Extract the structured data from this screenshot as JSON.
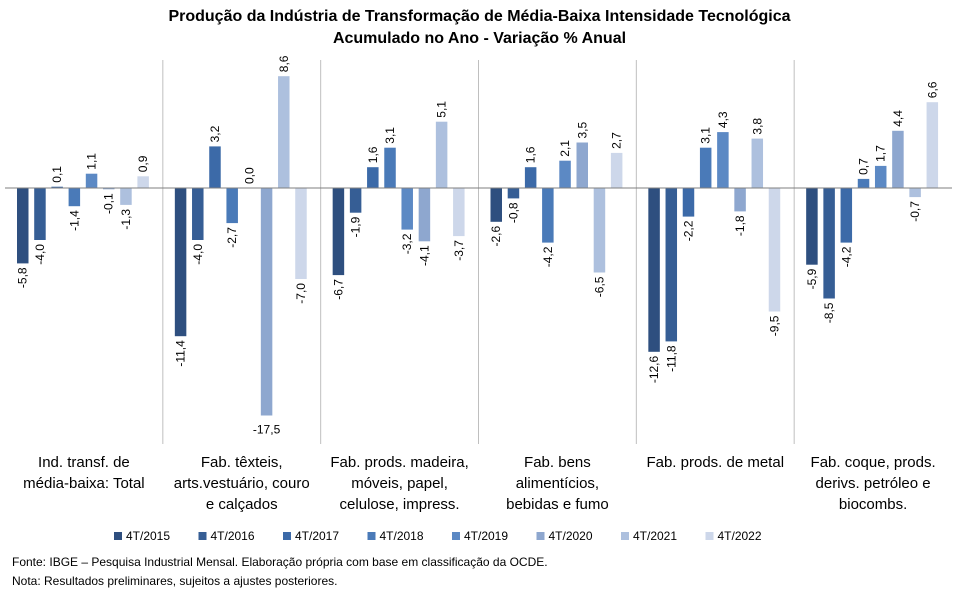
{
  "chart_data": {
    "type": "bar",
    "title": "Produção da Indústria de Transformação de Média-Baixa Intensidade Tecnológica",
    "subtitle": "Acumulado no Ano - Variação % Anual",
    "xlabel": "",
    "ylabel": "",
    "ylim": [
      -19,
      12
    ],
    "grid": false,
    "legend_position": "bottom",
    "categories": [
      [
        "Ind. transf. de",
        "média-baixa: Total"
      ],
      [
        "Fab. têxteis,",
        "arts.vestuário, couro",
        "e calçados"
      ],
      [
        "Fab. prods. madeira,",
        "móveis, papel,",
        "celulose, impress."
      ],
      [
        "Fab. bens",
        "alimentícios,",
        "bebidas e fumo"
      ],
      [
        "Fab. prods. de metal"
      ],
      [
        "Fab. coque, prods.",
        "derivs. petróleo e",
        "biocombs."
      ]
    ],
    "value_labels": [
      [
        "-5,8",
        "-4,0",
        "0,1",
        "-1,4",
        "1,1",
        "-0,1",
        "-1,3",
        "0,9"
      ],
      [
        "-11,4",
        "-4,0",
        "3,2",
        "-2,7",
        "0,0",
        "-17,5",
        "8,6",
        "-7,0"
      ],
      [
        "-6,7",
        "-1,9",
        "1,6",
        "3,1",
        "-3,2",
        "-4,1",
        "5,1",
        "-3,7"
      ],
      [
        "-2,6",
        "-0,8",
        "1,6",
        "-4,2",
        "2,1",
        "3,5",
        "-6,5",
        "2,7"
      ],
      [
        "-12,6",
        "-11,8",
        "-2,2",
        "3,1",
        "4,3",
        "-1,8",
        "3,8",
        "-9,5"
      ],
      [
        "-5,9",
        "-8,5",
        "-4,2",
        "0,7",
        "1,7",
        "4,4",
        "-0,7",
        "6,6"
      ]
    ],
    "series": [
      {
        "name": "4T/2015",
        "color": "#2e4f7f",
        "values": [
          -5.8,
          -11.4,
          -6.7,
          -2.6,
          -12.6,
          -5.9
        ]
      },
      {
        "name": "4T/2016",
        "color": "#365e95",
        "values": [
          -4.0,
          -4.0,
          -1.9,
          -0.8,
          -11.8,
          -8.5
        ]
      },
      {
        "name": "4T/2017",
        "color": "#3c6aa8",
        "values": [
          0.1,
          3.2,
          1.6,
          1.6,
          -2.2,
          -4.2
        ]
      },
      {
        "name": "4T/2018",
        "color": "#4a7ab8",
        "values": [
          -1.4,
          -2.7,
          3.1,
          -4.2,
          3.1,
          0.7
        ]
      },
      {
        "name": "4T/2019",
        "color": "#5c89c4",
        "values": [
          1.1,
          0.0,
          -3.2,
          2.1,
          4.3,
          1.7
        ]
      },
      {
        "name": "4T/2020",
        "color": "#8ea7cf",
        "values": [
          -0.1,
          -17.5,
          -4.1,
          3.5,
          -1.8,
          4.4
        ]
      },
      {
        "name": "4T/2021",
        "color": "#adc0de",
        "values": [
          -1.3,
          8.6,
          5.1,
          -6.5,
          3.8,
          -0.7
        ]
      },
      {
        "name": "4T/2022",
        "color": "#cdd7ea",
        "values": [
          0.9,
          -7.0,
          -3.7,
          2.7,
          -9.5,
          6.6
        ]
      }
    ]
  },
  "footnotes": {
    "source": "Fonte: IBGE – Pesquisa Industrial Mensal. Elaboração própria com base em classificação da OCDE.",
    "note": "Nota: Resultados preliminares, sujeitos a ajustes posteriores."
  }
}
